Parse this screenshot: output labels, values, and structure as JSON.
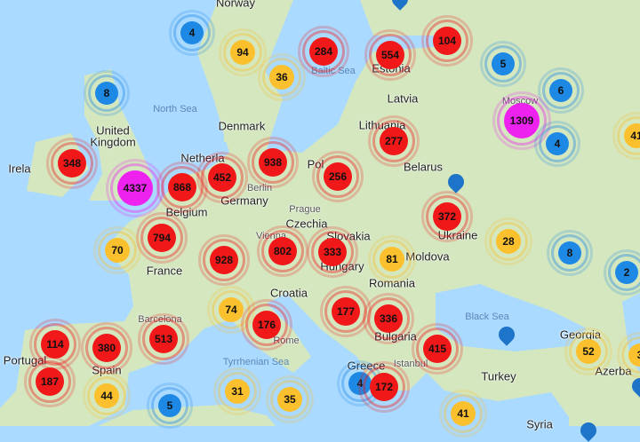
{
  "colors": {
    "sea": "#aadaff",
    "land": "#d4e7bf",
    "blue": "#1e88e5",
    "yellow": "#fbc02d",
    "red": "#f01818",
    "magenta": "#ee22ee",
    "pin": "#1e74c8"
  },
  "labels": [
    {
      "text": "Norway",
      "kind": "country"
    },
    {
      "text": "North Sea",
      "kind": "sea"
    },
    {
      "text": "United",
      "kind": "country"
    },
    {
      "text": "Kingdom",
      "kind": "country"
    },
    {
      "text": "Denmark",
      "kind": "country"
    },
    {
      "text": "Irela",
      "kind": "country"
    },
    {
      "text": "Netherla",
      "kind": "country"
    },
    {
      "text": "Berlin",
      "kind": "city"
    },
    {
      "text": "Germany",
      "kind": "country"
    },
    {
      "text": "Belgium",
      "kind": "country"
    },
    {
      "text": "Prague",
      "kind": "city"
    },
    {
      "text": "Czechia",
      "kind": "country"
    },
    {
      "text": "Vienna",
      "kind": "city"
    },
    {
      "text": "Slovakia",
      "kind": "country"
    },
    {
      "text": "Hungary",
      "kind": "country"
    },
    {
      "text": "France",
      "kind": "country"
    },
    {
      "text": "Croatia",
      "kind": "country"
    },
    {
      "text": "Romania",
      "kind": "country"
    },
    {
      "text": "Moldova",
      "kind": "country"
    },
    {
      "text": "Ukraine",
      "kind": "country"
    },
    {
      "text": "Belarus",
      "kind": "country"
    },
    {
      "text": "Lithuania",
      "kind": "country"
    },
    {
      "text": "Latvia",
      "kind": "country"
    },
    {
      "text": "Estonia",
      "kind": "country"
    },
    {
      "text": "Baltic Sea",
      "kind": "sea"
    },
    {
      "text": "Moscow",
      "kind": "city"
    },
    {
      "text": "Black Sea",
      "kind": "sea"
    },
    {
      "text": "Georgia",
      "kind": "country"
    },
    {
      "text": "Azerba",
      "kind": "country"
    },
    {
      "text": "Turkey",
      "kind": "country"
    },
    {
      "text": "Greece",
      "kind": "country"
    },
    {
      "text": "Bulgaria",
      "kind": "country"
    },
    {
      "text": "Spain",
      "kind": "country"
    },
    {
      "text": "Portugal",
      "kind": "country"
    },
    {
      "text": "Rome",
      "kind": "city"
    },
    {
      "text": "Tyrrhenian Sea",
      "kind": "sea"
    },
    {
      "text": "Syria",
      "kind": "country"
    },
    {
      "text": "Pol",
      "kind": "country"
    },
    {
      "text": "Barcelona",
      "kind": "city"
    },
    {
      "text": "Istanbul",
      "kind": "city"
    }
  ],
  "clusters": [
    {
      "count": "4",
      "color": "blue"
    },
    {
      "count": "94",
      "color": "yellow"
    },
    {
      "count": "36",
      "color": "yellow"
    },
    {
      "count": "284",
      "color": "red"
    },
    {
      "count": "554",
      "color": "red"
    },
    {
      "count": "104",
      "color": "red"
    },
    {
      "count": "5",
      "color": "blue"
    },
    {
      "count": "6",
      "color": "blue"
    },
    {
      "count": "1309",
      "color": "magenta"
    },
    {
      "count": "4",
      "color": "blue"
    },
    {
      "count": "41",
      "color": "yellow"
    },
    {
      "count": "8",
      "color": "blue"
    },
    {
      "count": "348",
      "color": "red"
    },
    {
      "count": "4337",
      "color": "magenta"
    },
    {
      "count": "868",
      "color": "red"
    },
    {
      "count": "452",
      "color": "red"
    },
    {
      "count": "938",
      "color": "red"
    },
    {
      "count": "256",
      "color": "red"
    },
    {
      "count": "277",
      "color": "red"
    },
    {
      "count": "372",
      "color": "red"
    },
    {
      "count": "794",
      "color": "red"
    },
    {
      "count": "70",
      "color": "yellow"
    },
    {
      "count": "928",
      "color": "red"
    },
    {
      "count": "802",
      "color": "red"
    },
    {
      "count": "333",
      "color": "red"
    },
    {
      "count": "81",
      "color": "yellow"
    },
    {
      "count": "28",
      "color": "yellow"
    },
    {
      "count": "8",
      "color": "blue"
    },
    {
      "count": "2",
      "color": "blue"
    },
    {
      "count": "74",
      "color": "yellow"
    },
    {
      "count": "176",
      "color": "red"
    },
    {
      "count": "177",
      "color": "red"
    },
    {
      "count": "336",
      "color": "red"
    },
    {
      "count": "415",
      "color": "red"
    },
    {
      "count": "52",
      "color": "yellow"
    },
    {
      "count": "3",
      "color": "yellow"
    },
    {
      "count": "114",
      "color": "red"
    },
    {
      "count": "380",
      "color": "red"
    },
    {
      "count": "513",
      "color": "red"
    },
    {
      "count": "187",
      "color": "red"
    },
    {
      "count": "44",
      "color": "yellow"
    },
    {
      "count": "5",
      "color": "blue"
    },
    {
      "count": "31",
      "color": "yellow"
    },
    {
      "count": "35",
      "color": "yellow"
    },
    {
      "count": "4",
      "color": "blue"
    },
    {
      "count": "172",
      "color": "red"
    },
    {
      "count": "41",
      "color": "yellow"
    }
  ],
  "pins": [
    {
      "icon": "map-pin-icon"
    },
    {
      "icon": "map-pin-icon"
    },
    {
      "icon": "map-pin-icon"
    },
    {
      "icon": "map-pin-icon"
    },
    {
      "icon": "map-pin-icon"
    }
  ]
}
